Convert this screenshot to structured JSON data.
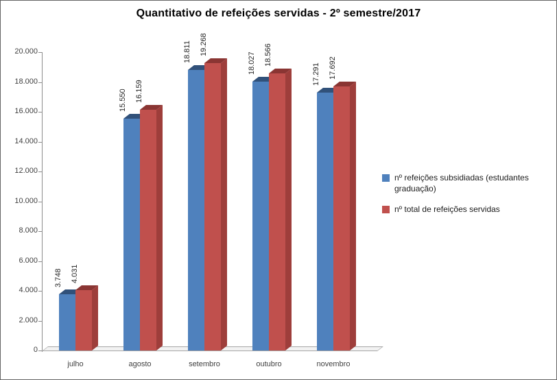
{
  "chart_data": {
    "type": "bar",
    "style": "3d-clustered-column",
    "title": "Quantitativo de refeições servidas - 2º semestre/2017",
    "categories": [
      "julho",
      "agosto",
      "setembro",
      "outubro",
      "novembro"
    ],
    "series": [
      {
        "name": "nº refeições subsidiadas (estudantes graduação)",
        "color": "#4F81BD",
        "side_color": "#3A6191",
        "top_color": "#31517A",
        "values": [
          3748,
          15550,
          18811,
          18027,
          17291
        ],
        "labels": [
          "3.748",
          "15.550",
          "18.811",
          "18.027",
          "17.291"
        ]
      },
      {
        "name": "nº total de refeições servidas",
        "color": "#C0504D",
        "side_color": "#9E3E3B",
        "top_color": "#8A3533",
        "values": [
          4031,
          16159,
          19268,
          18566,
          17692
        ],
        "labels": [
          "4.031",
          "16.159",
          "19.268",
          "18.566",
          "17.692"
        ]
      }
    ],
    "ylim": [
      0,
      20000
    ],
    "ytick_step": 2000,
    "ytick_labels": [
      "0",
      "2.000",
      "4.000",
      "6.000",
      "8.000",
      "10.000",
      "12.000",
      "14.000",
      "16.000",
      "18.000",
      "20.000"
    ],
    "xlabel": "",
    "ylabel": "",
    "grid": false,
    "legend_position": "right",
    "data_labels": "rotated-90-above-bars"
  }
}
